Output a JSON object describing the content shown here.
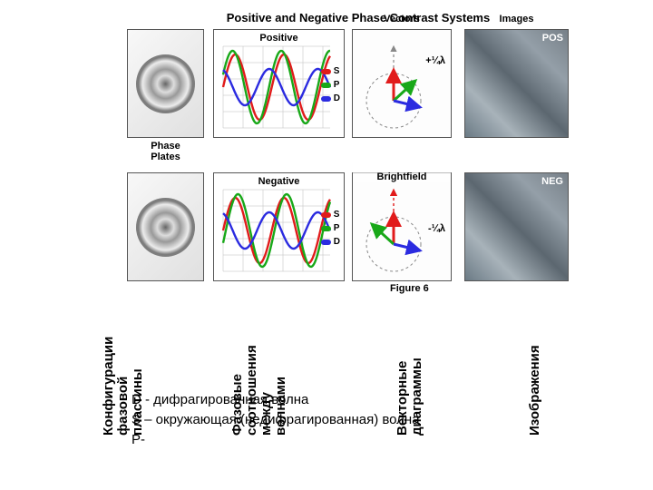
{
  "title": "Positive and Negative Phase Contrast Systems",
  "columns": {
    "phase_plates": "Phase\nPlates",
    "vectors": "Vectors",
    "brightfield": "Brightfield",
    "images": "Images"
  },
  "rows": {
    "positive_title": "Positive",
    "negative_title": "Negative",
    "pos_tag": "POS",
    "neg_tag": "NEG",
    "pos_lambda": "+¼λ",
    "neg_lambda": "-¼λ"
  },
  "legend": {
    "S": "S",
    "P": "P",
    "D": "D"
  },
  "colors": {
    "S_wave": "#e11b1b",
    "P_wave": "#18a818",
    "D_wave": "#2b2be0",
    "grid": "#bcbcbc",
    "panel_border": "#555555"
  },
  "waves": {
    "amplitude_S": 36,
    "amplitude_P": 40,
    "amplitude_D": 20,
    "periods": 2.2,
    "width": 118,
    "height": 90
  },
  "figure_number": "Figure 6",
  "vertical_labels": {
    "c1a": "Конфигурации",
    "c1b": "фазовой",
    "c1c": "пластины",
    "c2a": "Фазовые",
    "c2b": "соотношения",
    "c2c": "между",
    "c2d": "волнами",
    "c3a": "Векторные",
    "c3b": "диаграммы",
    "c4a": "Изображения"
  },
  "footer": {
    "l1": "D - дифрагированная волна",
    "l2": "S – окружающая (недифрагированная) волна",
    "l3": "P-"
  }
}
